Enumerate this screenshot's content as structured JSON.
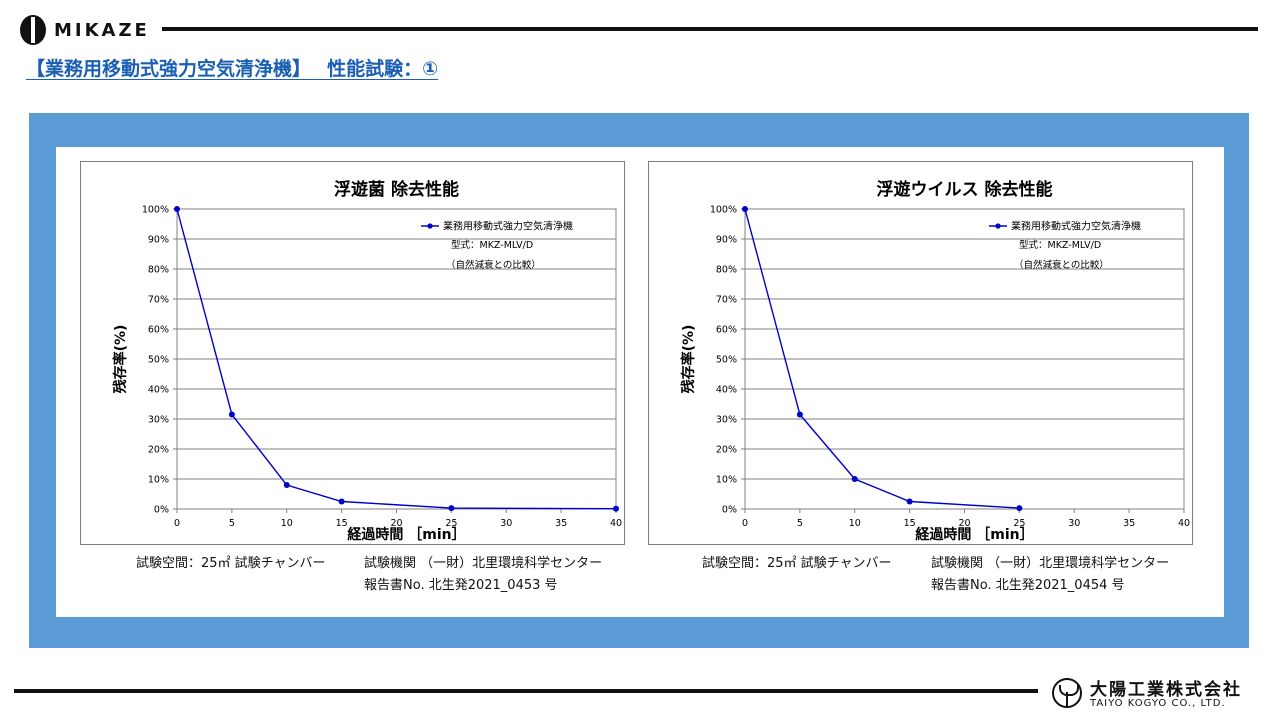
{
  "header": {
    "brand_name": "MIKAZE",
    "title": "【業務用移動式強力空気清浄機】　 性能試験：①"
  },
  "footer": {
    "company_name_jp": "大陽工業株式会社",
    "company_name_en": "TAIYO KOGYO  CO., LTD."
  },
  "colors": {
    "title_blue": "#1a5fb4",
    "panel_blue": "#5b9bd5",
    "series_blue": "#0000cc"
  },
  "charts": [
    {
      "notes": {
        "space": "試験空間：25㎡ 試験チャンバー",
        "lab": "試験機関 （一財）北里環境科学センター",
        "report": "報告書No.  北生発2021_0453 号"
      }
    },
    {
      "notes": {
        "space": "試験空間：25㎡ 試験チャンバー",
        "lab": "試験機関 （一財）北里環境科学センター",
        "report": "報告書No.  北生発2021_0454 号"
      }
    }
  ],
  "chart_data": [
    {
      "type": "line",
      "title": "浮遊菌 除去性能",
      "xlabel": "経過時間 ［min］",
      "ylabel": "残存率(%)",
      "xlim": [
        0,
        40
      ],
      "ylim": [
        0,
        100
      ],
      "x_ticks": [
        "0",
        "5",
        "10",
        "15",
        "20",
        "25",
        "30",
        "35",
        "40"
      ],
      "y_ticks": [
        "0%",
        "10%",
        "20%",
        "30%",
        "40%",
        "50%",
        "60%",
        "70%",
        "80%",
        "90%",
        "100%"
      ],
      "grid": true,
      "legend_position": "top-right",
      "legend_notes": [
        "型式：MKZ-MLV/D",
        "（自然減衰との比較）"
      ],
      "series": [
        {
          "name": "業務用移動式強力空気清浄機",
          "x": [
            0,
            5,
            10,
            15,
            25,
            40
          ],
          "y": [
            100,
            31.5,
            8,
            2.5,
            0.3,
            0.1
          ]
        }
      ]
    },
    {
      "type": "line",
      "title": "浮遊ウイルス 除去性能",
      "xlabel": "経過時間 ［min］",
      "ylabel": "残存率(%)",
      "xlim": [
        0,
        40
      ],
      "ylim": [
        0,
        100
      ],
      "x_ticks": [
        "0",
        "5",
        "10",
        "15",
        "20",
        "25",
        "30",
        "35",
        "40"
      ],
      "y_ticks": [
        "0%",
        "10%",
        "20%",
        "30%",
        "40%",
        "50%",
        "60%",
        "70%",
        "80%",
        "90%",
        "100%"
      ],
      "grid": true,
      "legend_position": "top-right",
      "legend_notes": [
        "型式：MKZ-MLV/D",
        "（自然減衰との比較）"
      ],
      "series": [
        {
          "name": "業務用移動式強力空気清浄機",
          "x": [
            0,
            5,
            10,
            15,
            25
          ],
          "y": [
            100,
            31.5,
            10,
            2.5,
            0.3
          ]
        }
      ]
    }
  ]
}
